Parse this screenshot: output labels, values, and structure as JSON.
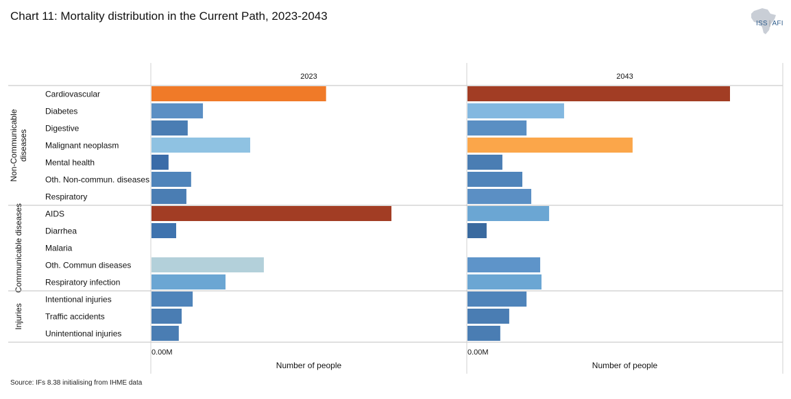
{
  "title": "Chart 11: Mortality distribution in the Current Path, 2023-2043",
  "source": "Source: IFs 8.38 initialising from IHME data",
  "logo": {
    "primary": "ISS",
    "secondary": "AFI"
  },
  "chart_data": {
    "type": "bar",
    "orientation": "horizontal",
    "panels": [
      "2023",
      "2043"
    ],
    "xlabel": "Number of people",
    "x_tick_label": "0.00M",
    "x_units": "relative (largest 2043 bar = 100)",
    "xlim": [
      0,
      120
    ],
    "groups": [
      {
        "name": "Non-Communicable diseases",
        "categories": [
          "Cardiovascular",
          "Diabetes",
          "Digestive",
          "Malignant neoplasm",
          "Mental health",
          "Oth. Non-commun. diseases",
          "Respiratory"
        ]
      },
      {
        "name": "Communicable diseases",
        "categories": [
          "AIDS",
          "Diarrhea",
          "Malaria",
          "Oth. Commun diseases",
          "Respiratory infection"
        ]
      },
      {
        "name": "Injuries",
        "categories": [
          "Intentional injuries",
          "Traffic accidents",
          "Unintentional injuries"
        ]
      }
    ],
    "series": [
      {
        "name": "2023",
        "values": [
          66.5,
          19.6,
          13.8,
          37.6,
          6.5,
          15.1,
          13.3,
          91.4,
          9.4,
          0,
          42.8,
          28.2,
          15.7,
          11.5,
          10.4
        ],
        "colors": [
          "#F07A28",
          "#5B8FC4",
          "#4A7DB3",
          "#8FC2E2",
          "#3B6CA8",
          "#4F84BA",
          "#4A7DB3",
          "#A23D24",
          "#3F73AE",
          "#5B8FC4",
          "#B3D0DA",
          "#6BA6D3",
          "#4F84BA",
          "#4A7DB3",
          "#4A7DB3"
        ]
      },
      {
        "name": "2043",
        "values": [
          100,
          36.8,
          22.5,
          62.9,
          13.3,
          20.9,
          24.3,
          31.1,
          7.3,
          0,
          27.7,
          28.2,
          22.5,
          15.9,
          12.5
        ],
        "colors": [
          "#A23D24",
          "#83B8E0",
          "#5A8FC3",
          "#FBA64A",
          "#4A7DB3",
          "#4F84BA",
          "#5B8FC4",
          "#6BA6D3",
          "#3A6A9F",
          "#5B8FC4",
          "#5E94C9",
          "#6BA6D3",
          "#4F84BA",
          "#4A7DB3",
          "#4A7DB3"
        ]
      }
    ]
  }
}
